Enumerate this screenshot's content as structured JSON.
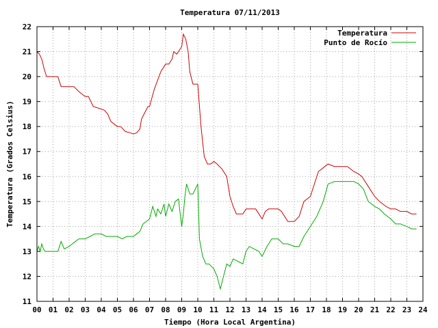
{
  "chart_data": {
    "type": "line",
    "title": "Temperatura 07/11/2013",
    "xlabel": "Tiempo (Hora Local Argentina)",
    "ylabel": "Temperatura (Grados Celsius)",
    "xlim": [
      0,
      24
    ],
    "ylim": [
      11,
      22
    ],
    "x_ticks": [
      "00",
      "01",
      "02",
      "03",
      "04",
      "05",
      "06",
      "07",
      "08",
      "09",
      "10",
      "11",
      "12",
      "13",
      "14",
      "15",
      "16",
      "17",
      "18",
      "19",
      "20",
      "21",
      "22",
      "23",
      "24"
    ],
    "y_ticks": [
      11,
      12,
      13,
      14,
      15,
      16,
      17,
      18,
      19,
      20,
      21,
      22
    ],
    "grid": true,
    "legend_position": "top-right",
    "series": [
      {
        "name": "Temperatura",
        "color": "#cc0000",
        "x": [
          0.0,
          0.15,
          0.3,
          0.45,
          0.6,
          1.0,
          1.3,
          1.5,
          2.0,
          2.3,
          2.6,
          3.0,
          3.2,
          3.5,
          4.0,
          4.2,
          4.4,
          4.6,
          5.0,
          5.2,
          5.5,
          5.8,
          6.0,
          6.2,
          6.4,
          6.5,
          6.9,
          7.0,
          7.3,
          7.7,
          8.0,
          8.2,
          8.4,
          8.5,
          8.7,
          8.9,
          9.0,
          9.1,
          9.25,
          9.4,
          9.5,
          9.7,
          10.0,
          10.2,
          10.4,
          10.6,
          10.8,
          11.0,
          11.2,
          11.5,
          11.8,
          12.0,
          12.2,
          12.4,
          12.6,
          12.8,
          13.0,
          13.3,
          13.6,
          14.0,
          14.2,
          14.4,
          14.6,
          15.0,
          15.2,
          15.4,
          15.6,
          16.0,
          16.3,
          16.6,
          17.0,
          17.2,
          17.5,
          17.9,
          18.1,
          18.5,
          19.0,
          19.3,
          19.7,
          20.0,
          20.2,
          20.5,
          20.8,
          21.0,
          21.3,
          21.7,
          22.0,
          22.3,
          22.6,
          23.0,
          23.3,
          23.6
        ],
        "values": [
          21.0,
          20.9,
          20.7,
          20.3,
          20.0,
          20.0,
          20.0,
          19.6,
          19.6,
          19.6,
          19.4,
          19.2,
          19.2,
          18.8,
          18.7,
          18.65,
          18.5,
          18.2,
          18.0,
          18.0,
          17.8,
          17.75,
          17.7,
          17.75,
          17.9,
          18.3,
          18.8,
          18.8,
          19.5,
          20.2,
          20.5,
          20.5,
          20.7,
          21.0,
          20.9,
          21.1,
          21.2,
          21.7,
          21.5,
          21.0,
          20.2,
          19.7,
          19.7,
          18.0,
          16.8,
          16.5,
          16.5,
          16.6,
          16.5,
          16.3,
          16.0,
          15.2,
          14.8,
          14.5,
          14.5,
          14.5,
          14.7,
          14.7,
          14.7,
          14.3,
          14.6,
          14.7,
          14.7,
          14.7,
          14.6,
          14.4,
          14.2,
          14.2,
          14.4,
          15.0,
          15.2,
          15.6,
          16.2,
          16.4,
          16.5,
          16.4,
          16.4,
          16.4,
          16.2,
          16.1,
          16.0,
          15.7,
          15.4,
          15.2,
          15.0,
          14.8,
          14.7,
          14.7,
          14.6,
          14.6,
          14.5,
          14.5
        ]
      },
      {
        "name": "Punto de Rocío",
        "color": "#00aa00",
        "x": [
          0.0,
          0.1,
          0.2,
          0.3,
          0.4,
          0.5,
          1.0,
          1.3,
          1.5,
          1.7,
          2.0,
          2.2,
          2.4,
          2.6,
          3.0,
          3.3,
          3.6,
          4.0,
          4.3,
          4.6,
          5.0,
          5.3,
          5.6,
          6.0,
          6.2,
          6.4,
          6.6,
          6.8,
          7.0,
          7.2,
          7.4,
          7.5,
          7.7,
          7.9,
          8.0,
          8.2,
          8.4,
          8.6,
          8.8,
          9.0,
          9.1,
          9.2,
          9.3,
          9.5,
          9.7,
          10.0,
          10.1,
          10.3,
          10.5,
          10.7,
          11.0,
          11.2,
          11.4,
          11.6,
          11.8,
          12.0,
          12.2,
          12.5,
          12.8,
          13.0,
          13.2,
          13.5,
          13.8,
          14.0,
          14.3,
          14.6,
          15.0,
          15.3,
          15.6,
          16.0,
          16.3,
          16.6,
          17.0,
          17.4,
          17.8,
          18.1,
          18.5,
          19.0,
          19.3,
          19.7,
          20.0,
          20.3,
          20.6,
          21.0,
          21.3,
          21.6,
          22.0,
          22.3,
          22.6,
          23.0,
          23.3,
          23.6
        ],
        "values": [
          13.0,
          13.2,
          13.0,
          13.3,
          13.1,
          13.0,
          13.0,
          13.0,
          13.4,
          13.1,
          13.2,
          13.3,
          13.4,
          13.5,
          13.5,
          13.6,
          13.7,
          13.7,
          13.6,
          13.6,
          13.6,
          13.5,
          13.6,
          13.6,
          13.7,
          13.8,
          14.1,
          14.2,
          14.3,
          14.8,
          14.4,
          14.7,
          14.5,
          14.9,
          14.4,
          14.9,
          14.6,
          15.0,
          15.1,
          14.0,
          14.5,
          15.2,
          15.7,
          15.3,
          15.3,
          15.7,
          13.5,
          12.8,
          12.5,
          12.5,
          12.3,
          12.0,
          11.5,
          12.0,
          12.5,
          12.4,
          12.7,
          12.6,
          12.5,
          13.0,
          13.2,
          13.1,
          13.0,
          12.8,
          13.2,
          13.5,
          13.5,
          13.3,
          13.3,
          13.2,
          13.2,
          13.6,
          14.0,
          14.4,
          15.0,
          15.7,
          15.8,
          15.8,
          15.8,
          15.8,
          15.7,
          15.5,
          15.0,
          14.8,
          14.7,
          14.5,
          14.3,
          14.1,
          14.1,
          14.0,
          13.9,
          13.9
        ]
      }
    ]
  }
}
